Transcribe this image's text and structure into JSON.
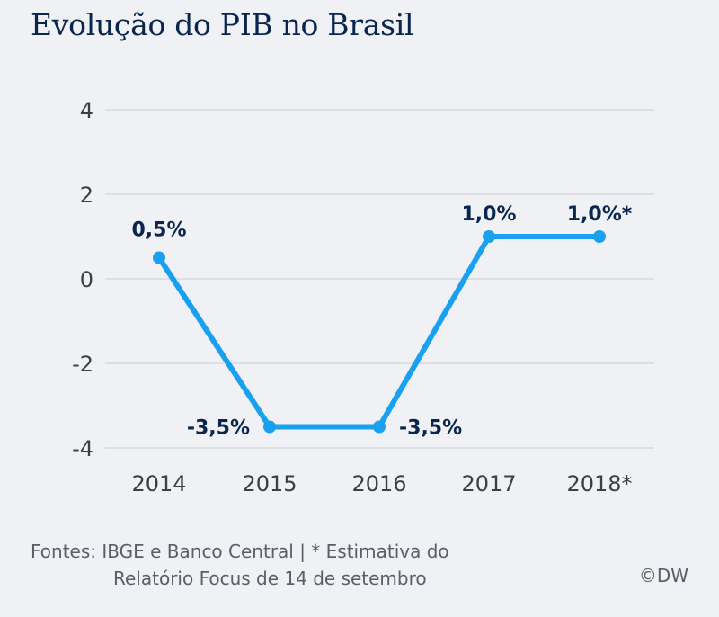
{
  "title": "Evolução do PIB no Brasil",
  "footer": {
    "line1": "Fontes: IBGE e Banco Central | * Estimativa do",
    "line2": "Relatório Focus de 14 de setembro",
    "credit": "©DW"
  },
  "colors": {
    "line": "#1aa0f0",
    "title": "#0a2650",
    "grid": "#d6d9de"
  },
  "chart_data": {
    "type": "line",
    "title": "Evolução do PIB no Brasil",
    "xlabel": "",
    "ylabel": "",
    "categories": [
      "2014",
      "2015",
      "2016",
      "2017",
      "2018*"
    ],
    "series": [
      {
        "name": "PIB",
        "values": [
          0.5,
          -3.5,
          -3.5,
          1.0,
          1.0
        ],
        "labels": [
          "0,5%",
          "-3,5%",
          "-3,5%",
          "1,0%",
          "1,0%*"
        ]
      }
    ],
    "ylim": [
      -4,
      4
    ],
    "yticks": [
      4,
      2,
      0,
      -2,
      -4
    ],
    "ytick_labels": [
      "4",
      "2",
      "0",
      "-2",
      "-4"
    ],
    "grid": true,
    "legend": "none"
  }
}
